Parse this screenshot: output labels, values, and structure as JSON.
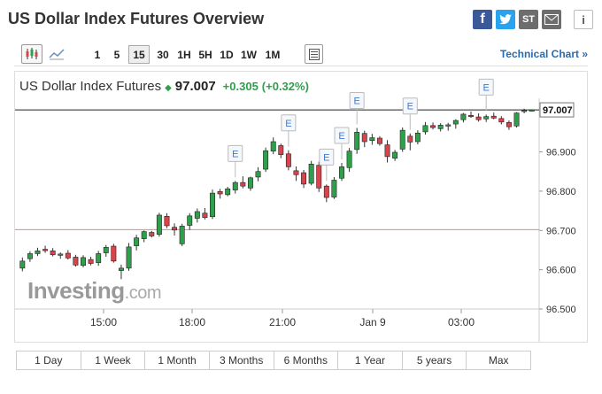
{
  "page": {
    "title": "US Dollar Index Futures Overview"
  },
  "share": {
    "facebook": "f",
    "twitter": "t",
    "stocktwits": "ST",
    "email": "✉",
    "info": "i"
  },
  "toolbar": {
    "intervals": [
      "1",
      "5",
      "15",
      "30",
      "1H",
      "5H",
      "1D",
      "1W",
      "1M"
    ],
    "selected_interval": "15",
    "technical_chart_label": "Technical Chart »"
  },
  "quote": {
    "name": "US Dollar Index Futures",
    "price": "97.007",
    "change": "+0.305",
    "change_pct": "(+0.32%)"
  },
  "colors": {
    "up": "#2fa04a",
    "down": "#d9434c",
    "prev_close": "#e08a7c",
    "current_line": "#222"
  },
  "logo": {
    "main": "Investing",
    "suffix": ".com"
  },
  "event_marker_label": "E",
  "ranges": [
    "1 Day",
    "1 Week",
    "1 Month",
    "3 Months",
    "6 Months",
    "1 Year",
    "5 years",
    "Max"
  ],
  "chart_data": {
    "type": "candlestick",
    "y_ticks": [
      "96.900",
      "96.800",
      "96.700",
      "96.600",
      "96.500"
    ],
    "x_ticks": [
      "15:00",
      "18:00",
      "21:00",
      "Jan 9",
      "03:00"
    ],
    "ylim": [
      96.5,
      97.05
    ],
    "current_value": 97.007,
    "current_label": "97.007",
    "previous_close": 96.702,
    "grid": false,
    "candles": [
      [
        96.604,
        96.631,
        96.596,
        96.622
      ],
      [
        96.628,
        96.647,
        96.62,
        96.641
      ],
      [
        96.641,
        96.656,
        96.635,
        96.648
      ],
      [
        96.652,
        96.661,
        96.643,
        96.651
      ],
      [
        96.648,
        96.655,
        96.634,
        96.638
      ],
      [
        96.637,
        96.644,
        96.628,
        96.64
      ],
      [
        96.642,
        96.65,
        96.626,
        96.63
      ],
      [
        96.632,
        96.638,
        96.608,
        96.612
      ],
      [
        96.611,
        96.637,
        96.606,
        96.631
      ],
      [
        96.626,
        96.633,
        96.611,
        96.616
      ],
      [
        96.618,
        96.648,
        96.61,
        96.641
      ],
      [
        96.643,
        96.663,
        96.633,
        96.657
      ],
      [
        96.66,
        96.666,
        96.618,
        96.622
      ],
      [
        96.598,
        96.613,
        96.576,
        96.604
      ],
      [
        96.604,
        96.668,
        96.597,
        96.658
      ],
      [
        96.661,
        96.689,
        96.649,
        96.681
      ],
      [
        96.679,
        96.7,
        96.67,
        96.697
      ],
      [
        96.695,
        96.699,
        96.682,
        96.686
      ],
      [
        96.69,
        96.745,
        96.684,
        96.739
      ],
      [
        96.736,
        96.744,
        96.706,
        96.712
      ],
      [
        96.708,
        96.718,
        96.687,
        96.701
      ],
      [
        96.666,
        96.717,
        96.66,
        96.711
      ],
      [
        96.713,
        96.744,
        96.701,
        96.737
      ],
      [
        96.731,
        96.756,
        96.72,
        96.748
      ],
      [
        96.744,
        96.757,
        96.728,
        96.733
      ],
      [
        96.735,
        96.804,
        96.729,
        96.795
      ],
      [
        96.799,
        96.806,
        96.781,
        96.793
      ],
      [
        96.791,
        96.811,
        96.787,
        96.806
      ],
      [
        96.803,
        96.826,
        96.794,
        96.822
      ],
      [
        96.822,
        96.838,
        96.807,
        96.813
      ],
      [
        96.808,
        96.837,
        96.801,
        96.834
      ],
      [
        96.836,
        96.861,
        96.825,
        96.85
      ],
      [
        96.856,
        96.911,
        96.849,
        96.903
      ],
      [
        96.902,
        96.937,
        96.894,
        96.926
      ],
      [
        96.916,
        96.921,
        96.884,
        96.893
      ],
      [
        96.895,
        96.904,
        96.853,
        96.862
      ],
      [
        96.852,
        96.863,
        96.826,
        96.842
      ],
      [
        96.847,
        96.854,
        96.808,
        96.818
      ],
      [
        96.82,
        96.877,
        96.815,
        96.869
      ],
      [
        96.866,
        96.875,
        96.798,
        96.808
      ],
      [
        96.813,
        96.817,
        96.772,
        96.784
      ],
      [
        96.785,
        96.836,
        96.78,
        96.828
      ],
      [
        96.833,
        96.872,
        96.826,
        96.862
      ],
      [
        96.86,
        96.91,
        96.849,
        96.902
      ],
      [
        96.906,
        96.961,
        96.895,
        96.95
      ],
      [
        96.947,
        96.954,
        96.912,
        96.926
      ],
      [
        96.929,
        96.946,
        96.918,
        96.936
      ],
      [
        96.935,
        96.94,
        96.916,
        96.921
      ],
      [
        96.918,
        96.93,
        96.873,
        96.888
      ],
      [
        96.884,
        96.905,
        96.877,
        96.899
      ],
      [
        96.907,
        96.962,
        96.9,
        96.955
      ],
      [
        96.94,
        96.947,
        96.904,
        96.925
      ],
      [
        96.926,
        96.955,
        96.919,
        96.948
      ],
      [
        96.951,
        96.976,
        96.944,
        96.967
      ],
      [
        96.967,
        96.975,
        96.957,
        96.962
      ],
      [
        96.959,
        96.973,
        96.952,
        96.968
      ],
      [
        96.966,
        96.974,
        96.954,
        96.969
      ],
      [
        96.971,
        96.983,
        96.959,
        96.98
      ],
      [
        96.982,
        96.999,
        96.975,
        96.996
      ],
      [
        96.993,
        97.003,
        96.987,
        96.991
      ],
      [
        96.989,
        96.998,
        96.977,
        96.982
      ],
      [
        96.984,
        96.995,
        96.976,
        96.99
      ],
      [
        96.991,
        97.0,
        96.983,
        96.986
      ],
      [
        96.985,
        96.991,
        96.97,
        96.976
      ],
      [
        96.975,
        96.98,
        96.956,
        96.964
      ],
      [
        96.966,
        97.001,
        96.962,
        96.999
      ],
      [
        97.003,
        97.01,
        96.998,
        97.006
      ],
      [
        97.006,
        97.008,
        97.003,
        97.007
      ]
    ],
    "events": [
      28,
      35,
      40,
      42,
      44,
      51,
      61
    ]
  },
  "range_selected": ""
}
